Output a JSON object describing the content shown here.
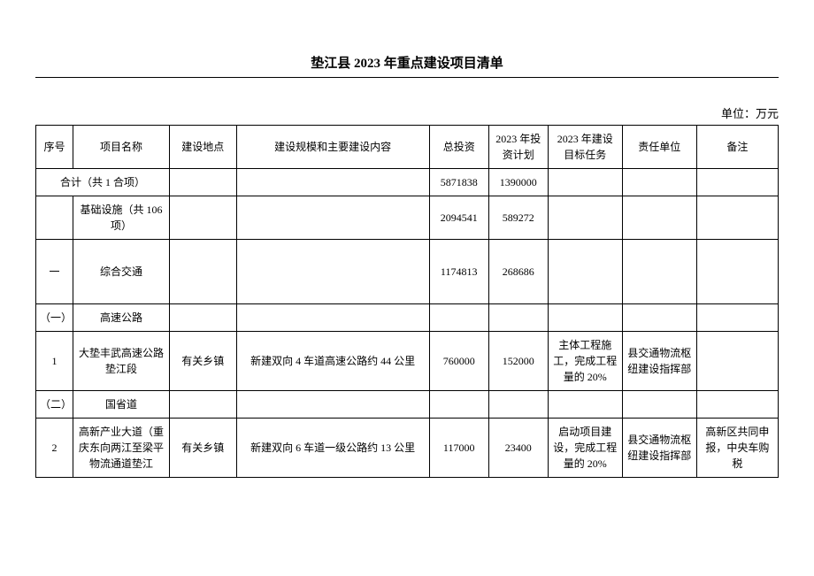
{
  "title": "垫江县 2023 年重点建设项目清单",
  "unit_label": "单位：万元",
  "headers": {
    "seq": "序号",
    "name": "项目名称",
    "loc": "建设地点",
    "scale": "建设规模和主要建设内容",
    "total": "总投资",
    "plan": "2023 年投资计划",
    "task": "2023 年建设目标任务",
    "resp": "责任单位",
    "note": "备注"
  },
  "rows": [
    {
      "seq_span": true,
      "seq": "合计（共 1 合项）",
      "name": "",
      "loc": "",
      "scale": "",
      "total": "5871838",
      "plan": "1390000",
      "task": "",
      "resp": "",
      "note": ""
    },
    {
      "seq": "",
      "name": "基础设施（共 106 项）",
      "loc": "",
      "scale": "",
      "total": "2094541",
      "plan": "589272",
      "task": "",
      "resp": "",
      "note": ""
    },
    {
      "seq": "一",
      "name": "综合交通",
      "loc": "",
      "scale": "",
      "total": "1174813",
      "plan": "268686",
      "task": "",
      "resp": "",
      "note": "",
      "spacer": true
    },
    {
      "seq": "（一）",
      "name": "高速公路",
      "loc": "",
      "scale": "",
      "total": "",
      "plan": "",
      "task": "",
      "resp": "",
      "note": ""
    },
    {
      "seq": "1",
      "name": "大垫丰武高速公路垫江段",
      "loc": "有关乡镇",
      "scale": "新建双向 4 车道高速公路约 44 公里",
      "total": "760000",
      "plan": "152000",
      "task": "主体工程施工，完成工程量的 20%",
      "resp": "县交通物流枢纽建设指挥部",
      "note": ""
    },
    {
      "seq": "（二）",
      "name": "国省道",
      "loc": "",
      "scale": "",
      "total": "",
      "plan": "",
      "task": "",
      "resp": "",
      "note": ""
    },
    {
      "seq": "2",
      "name": "高新产业大道（重庆东向两江至梁平物流通道垫江",
      "loc": "有关乡镇",
      "scale": "新建双向 6 车道一级公路约 13 公里",
      "total": "117000",
      "plan": "23400",
      "task": "启动项目建设，完成工程量的 20%",
      "resp": "县交通物流枢纽建设指挥部",
      "note": "高新区共同申报，中央车购税"
    }
  ]
}
